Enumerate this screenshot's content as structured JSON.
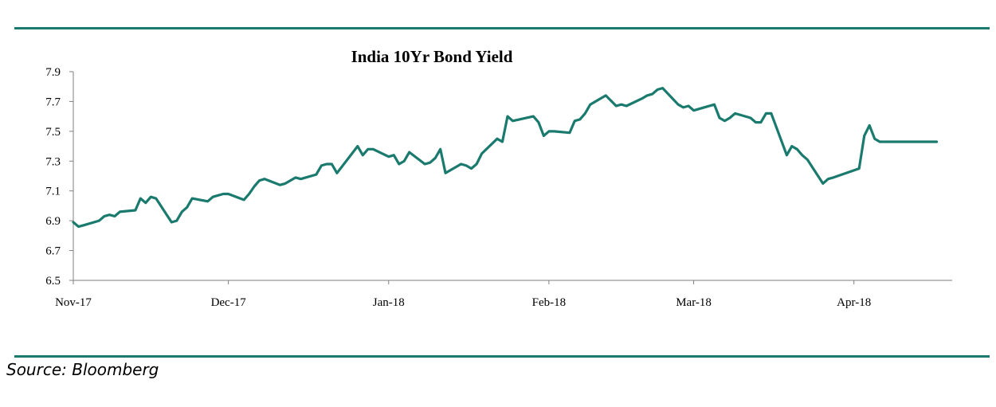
{
  "source": "Source: Bloomberg",
  "chart_data": {
    "type": "line",
    "title": "India 10Yr Bond Yield",
    "xlabel": "",
    "ylabel": "",
    "ylim": [
      6.5,
      7.9
    ],
    "yticks": [
      "6.5",
      "6.7",
      "6.9",
      "7.1",
      "7.3",
      "7.5",
      "7.7",
      "7.9"
    ],
    "xlim": [
      "2017-11-01",
      "2018-04-18"
    ],
    "xticks": [
      {
        "label": "Nov-17",
        "date": "2017-11-01"
      },
      {
        "label": "Dec-17",
        "date": "2017-12-01"
      },
      {
        "label": "Jan-18",
        "date": "2018-01-01"
      },
      {
        "label": "Feb-18",
        "date": "2018-02-01"
      },
      {
        "label": "Mar-18",
        "date": "2018-03-01"
      },
      {
        "label": "Apr-18",
        "date": "2018-04-01"
      }
    ],
    "grid": false,
    "legend": "none",
    "line_color": "#1a7a6e",
    "series": [
      {
        "x": [
          "2017-11-01",
          "2017-11-02",
          "2017-11-03",
          "2017-11-06",
          "2017-11-07",
          "2017-11-08",
          "2017-11-09",
          "2017-11-10",
          "2017-11-13",
          "2017-11-14",
          "2017-11-15",
          "2017-11-16",
          "2017-11-17",
          "2017-11-20",
          "2017-11-21",
          "2017-11-22",
          "2017-11-23",
          "2017-11-24",
          "2017-11-27",
          "2017-11-28",
          "2017-11-29",
          "2017-11-30",
          "2017-12-01",
          "2017-12-04",
          "2017-12-05",
          "2017-12-06",
          "2017-12-07",
          "2017-12-08",
          "2017-12-11",
          "2017-12-12",
          "2017-12-13",
          "2017-12-14",
          "2017-12-15",
          "2017-12-18",
          "2017-12-19",
          "2017-12-20",
          "2017-12-21",
          "2017-12-22",
          "2017-12-26",
          "2017-12-27",
          "2017-12-28",
          "2017-12-29",
          "2018-01-01",
          "2018-01-02",
          "2018-01-03",
          "2018-01-04",
          "2018-01-05",
          "2018-01-08",
          "2018-01-09",
          "2018-01-10",
          "2018-01-11",
          "2018-01-12",
          "2018-01-15",
          "2018-01-16",
          "2018-01-17",
          "2018-01-18",
          "2018-01-19",
          "2018-01-22",
          "2018-01-23",
          "2018-01-24",
          "2018-01-25",
          "2018-01-29",
          "2018-01-30",
          "2018-01-31",
          "2018-02-01",
          "2018-02-02",
          "2018-02-05",
          "2018-02-06",
          "2018-02-07",
          "2018-02-08",
          "2018-02-09",
          "2018-02-12",
          "2018-02-14",
          "2018-02-15",
          "2018-02-16",
          "2018-02-19",
          "2018-02-20",
          "2018-02-21",
          "2018-02-22",
          "2018-02-23",
          "2018-02-26",
          "2018-02-27",
          "2018-02-28",
          "2018-03-01",
          "2018-03-05",
          "2018-03-06",
          "2018-03-07",
          "2018-03-08",
          "2018-03-09",
          "2018-03-12",
          "2018-03-13",
          "2018-03-14",
          "2018-03-15",
          "2018-03-16",
          "2018-03-19",
          "2018-03-20",
          "2018-03-21",
          "2018-03-22",
          "2018-03-23",
          "2018-03-26",
          "2018-03-27",
          "2018-03-28",
          "2018-04-02",
          "2018-04-03",
          "2018-04-04",
          "2018-04-05",
          "2018-04-06",
          "2018-04-09",
          "2018-04-10",
          "2018-04-11",
          "2018-04-12",
          "2018-04-13",
          "2018-04-16",
          "2018-04-17"
        ],
        "y": [
          6.89,
          6.86,
          6.87,
          6.9,
          6.93,
          6.94,
          6.93,
          6.96,
          6.97,
          7.05,
          7.02,
          7.06,
          7.05,
          6.89,
          6.9,
          6.96,
          6.99,
          7.05,
          7.03,
          7.06,
          7.07,
          7.08,
          7.08,
          7.04,
          7.08,
          7.13,
          7.17,
          7.18,
          7.14,
          7.15,
          7.17,
          7.19,
          7.18,
          7.21,
          7.27,
          7.28,
          7.28,
          7.22,
          7.4,
          7.34,
          7.38,
          7.38,
          7.33,
          7.34,
          7.28,
          7.3,
          7.36,
          7.28,
          7.29,
          7.32,
          7.38,
          7.22,
          7.28,
          7.27,
          7.25,
          7.28,
          7.35,
          7.45,
          7.43,
          7.6,
          7.57,
          7.6,
          7.56,
          7.47,
          7.5,
          7.5,
          7.49,
          7.57,
          7.58,
          7.62,
          7.68,
          7.74,
          7.67,
          7.68,
          7.67,
          7.72,
          7.74,
          7.75,
          7.78,
          7.79,
          7.68,
          7.66,
          7.67,
          7.64,
          7.68,
          7.59,
          7.57,
          7.59,
          7.62,
          7.59,
          7.56,
          7.56,
          7.62,
          7.62,
          7.34,
          7.4,
          7.38,
          7.34,
          7.31,
          7.15,
          7.18,
          7.19,
          7.25,
          7.47,
          7.54,
          7.45,
          7.43,
          7.43,
          7.43,
          7.43,
          7.43,
          7.43,
          7.43,
          7.43
        ]
      }
    ]
  }
}
